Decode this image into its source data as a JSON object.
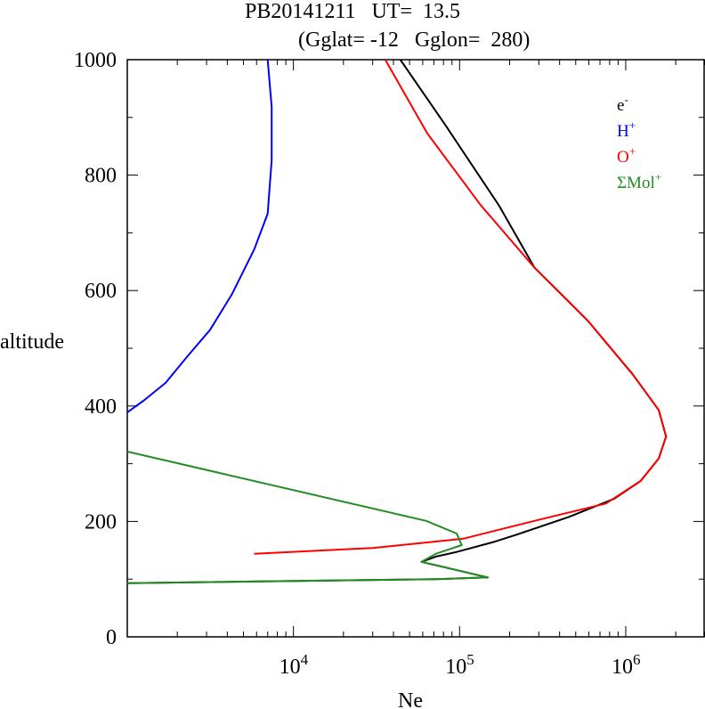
{
  "chart_data": {
    "type": "line",
    "title_line1": "PB20141211   UT=  13.5",
    "title_line2": "(Gglat= -12   Gglon=  280)",
    "xlabel": "Ne",
    "ylabel": "altitude",
    "xscale": "log",
    "xlim": [
      1000,
      3000000
    ],
    "ylim": [
      0,
      1000
    ],
    "yticks": [
      "0",
      "200",
      "400",
      "600",
      "800",
      "1000"
    ],
    "xticks": [
      {
        "base": "10",
        "exp": "4",
        "value": 10000
      },
      {
        "base": "10",
        "exp": "5",
        "value": 100000
      },
      {
        "base": "10",
        "exp": "6",
        "value": 1000000
      }
    ],
    "legend_position": "top-right",
    "series": [
      {
        "name": "e",
        "sup": "-",
        "color": "#000000",
        "points": [
          [
            44000,
            1000
          ],
          [
            82000,
            887
          ],
          [
            172000,
            748
          ],
          [
            282000,
            640
          ],
          [
            590000,
            548
          ],
          [
            1100000,
            455
          ],
          [
            1580000,
            393
          ],
          [
            1750000,
            347
          ],
          [
            1580000,
            309
          ],
          [
            1230000,
            270
          ],
          [
            850000,
            239
          ],
          [
            457000,
            208
          ],
          [
            220000,
            177
          ],
          [
            163000,
            165
          ],
          [
            96000,
            147
          ],
          [
            72000,
            139
          ],
          [
            59000,
            130
          ],
          [
            148000,
            103
          ],
          [
            72000,
            100
          ],
          [
            1000,
            93
          ]
        ]
      },
      {
        "name": "H",
        "sup": "+",
        "color": "#0000ff",
        "points": [
          [
            7000,
            1000
          ],
          [
            7400,
            918
          ],
          [
            7400,
            826
          ],
          [
            7000,
            733
          ],
          [
            5800,
            671
          ],
          [
            4270,
            594
          ],
          [
            3150,
            532
          ],
          [
            2300,
            486
          ],
          [
            1700,
            440
          ],
          [
            1250,
            409
          ],
          [
            1000,
            389
          ]
        ]
      },
      {
        "name": "O",
        "sup": "+",
        "color": "#ff0000",
        "points": [
          [
            35700,
            1000
          ],
          [
            64000,
            872
          ],
          [
            134000,
            748
          ],
          [
            282000,
            640
          ],
          [
            590000,
            548
          ],
          [
            1100000,
            455
          ],
          [
            1580000,
            393
          ],
          [
            1750000,
            347
          ],
          [
            1580000,
            309
          ],
          [
            1230000,
            270
          ],
          [
            760000,
            231
          ],
          [
            282000,
            201
          ],
          [
            105000,
            170
          ],
          [
            30000,
            154
          ],
          [
            5800,
            144
          ]
        ]
      },
      {
        "name": "ΣMol",
        "sup": "+",
        "color": "#228b22",
        "points": [
          [
            1000,
            321
          ],
          [
            63000,
            201
          ],
          [
            96000,
            179
          ],
          [
            103000,
            159
          ],
          [
            72000,
            144
          ],
          [
            59000,
            130
          ],
          [
            148000,
            103
          ],
          [
            72000,
            100
          ],
          [
            1000,
            93
          ]
        ]
      }
    ]
  }
}
